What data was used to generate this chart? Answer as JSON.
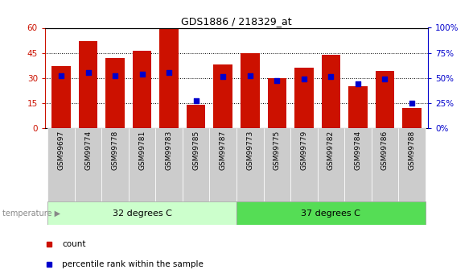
{
  "title": "GDS1886 / 218329_at",
  "samples": [
    "GSM99697",
    "GSM99774",
    "GSM99778",
    "GSM99781",
    "GSM99783",
    "GSM99785",
    "GSM99787",
    "GSM99773",
    "GSM99775",
    "GSM99779",
    "GSM99782",
    "GSM99784",
    "GSM99786",
    "GSM99788"
  ],
  "counts": [
    37,
    52,
    42,
    46,
    60,
    14,
    38,
    45,
    30,
    36,
    44,
    25,
    34,
    12
  ],
  "percentiles": [
    52,
    55,
    52,
    54,
    55,
    27,
    51,
    52,
    47,
    49,
    51,
    44,
    49,
    25
  ],
  "bar_color": "#cc1100",
  "dot_color": "#0000cc",
  "left_ylim": [
    0,
    60
  ],
  "right_ylim": [
    0,
    100
  ],
  "left_yticks": [
    0,
    15,
    30,
    45,
    60
  ],
  "right_yticks": [
    0,
    25,
    50,
    75,
    100
  ],
  "right_yticklabels": [
    "0%",
    "25%",
    "50%",
    "75%",
    "100%"
  ],
  "group1_label": "32 degrees C",
  "group2_label": "37 degrees C",
  "group1_count": 7,
  "group2_count": 7,
  "group1_bg": "#ccffcc",
  "group2_bg": "#55dd55",
  "xtick_bg": "#cccccc",
  "label_arrow": "temperature",
  "legend_count": "count",
  "legend_percentile": "percentile rank within the sample",
  "bar_color_red": "#cc1100",
  "dot_color_blue": "#0000cc",
  "bar_width": 0.7,
  "dot_size": 25
}
